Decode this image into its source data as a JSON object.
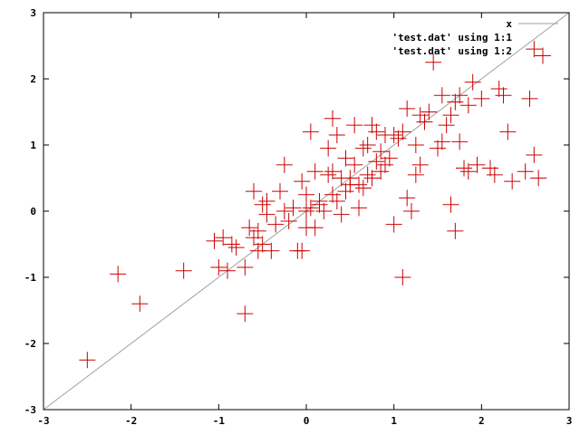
{
  "chart_data": {
    "type": "scatter",
    "title": "",
    "xlabel": "",
    "ylabel": "",
    "xlim": [
      -3,
      3
    ],
    "ylim": [
      -3,
      3
    ],
    "xticks": [
      -3,
      -2,
      -1,
      0,
      1,
      2,
      3
    ],
    "yticks": [
      -3,
      -2,
      -1,
      0,
      1,
      2,
      3
    ],
    "grid": false,
    "legend_position": "top-right",
    "series": [
      {
        "name": "x",
        "kind": "line",
        "color": "#a0a0a0",
        "x": [
          -3,
          3
        ],
        "y": [
          -3,
          3
        ]
      },
      {
        "name": "'test.dat' using 1:1",
        "kind": "points",
        "color": "#cc0000",
        "x": [],
        "y": []
      },
      {
        "name": "'test.dat' using 1:2",
        "kind": "points",
        "color": "#cc0000",
        "x": [
          -2.5,
          -2.15,
          -1.9,
          -1.4,
          -1.05,
          -1.0,
          -0.95,
          -0.9,
          -0.85,
          -0.8,
          -0.7,
          -0.7,
          -0.65,
          -0.6,
          -0.6,
          -0.55,
          -0.55,
          -0.5,
          -0.5,
          -0.45,
          -0.45,
          -0.4,
          -0.35,
          -0.3,
          -0.25,
          -0.25,
          -0.2,
          -0.15,
          -0.1,
          -0.05,
          -0.05,
          0.0,
          0.0,
          0.0,
          0.05,
          0.05,
          0.1,
          0.1,
          0.15,
          0.15,
          0.2,
          0.25,
          0.25,
          0.3,
          0.3,
          0.3,
          0.35,
          0.35,
          0.4,
          0.4,
          0.45,
          0.45,
          0.5,
          0.5,
          0.55,
          0.55,
          0.6,
          0.6,
          0.65,
          0.65,
          0.7,
          0.7,
          0.75,
          0.75,
          0.8,
          0.8,
          0.85,
          0.85,
          0.9,
          0.9,
          0.95,
          1.0,
          1.0,
          1.05,
          1.1,
          1.1,
          1.15,
          1.15,
          1.2,
          1.25,
          1.25,
          1.3,
          1.3,
          1.35,
          1.4,
          1.45,
          1.5,
          1.55,
          1.55,
          1.6,
          1.65,
          1.65,
          1.7,
          1.7,
          1.75,
          1.75,
          1.8,
          1.85,
          1.85,
          1.9,
          1.95,
          2.0,
          2.1,
          2.15,
          2.2,
          2.25,
          2.3,
          2.35,
          2.5,
          2.55,
          2.6,
          2.6,
          2.65,
          2.7
        ],
        "y": [
          -2.25,
          -0.95,
          -1.4,
          -0.9,
          -0.45,
          -0.85,
          -0.4,
          -0.9,
          -0.5,
          -0.55,
          -1.55,
          -0.85,
          -0.25,
          0.3,
          -0.4,
          -0.3,
          -0.6,
          0.1,
          -0.5,
          -0.05,
          0.15,
          -0.6,
          -0.2,
          0.3,
          0.0,
          0.7,
          -0.15,
          0.05,
          -0.6,
          0.45,
          -0.6,
          0.0,
          -0.25,
          0.25,
          0.05,
          1.2,
          0.6,
          -0.25,
          0.15,
          0.1,
          0.0,
          0.55,
          0.95,
          1.4,
          0.25,
          0.6,
          0.15,
          1.15,
          -0.05,
          0.5,
          0.3,
          0.8,
          0.5,
          0.4,
          0.7,
          1.3,
          0.05,
          0.4,
          0.95,
          0.35,
          0.55,
          1.0,
          1.3,
          0.5,
          0.75,
          1.2,
          0.9,
          0.6,
          0.7,
          1.15,
          0.8,
          -0.2,
          1.15,
          1.1,
          1.2,
          -1.0,
          0.2,
          1.55,
          0.0,
          0.55,
          1.0,
          0.7,
          1.45,
          1.35,
          1.5,
          2.25,
          0.95,
          1.05,
          1.75,
          1.3,
          1.45,
          0.1,
          1.65,
          -0.3,
          1.75,
          1.05,
          0.65,
          1.6,
          0.6,
          1.95,
          0.7,
          1.7,
          0.65,
          0.55,
          1.85,
          1.75,
          1.2,
          0.45,
          0.6,
          1.7,
          2.45,
          0.85,
          0.5,
          2.35
        ]
      }
    ]
  }
}
